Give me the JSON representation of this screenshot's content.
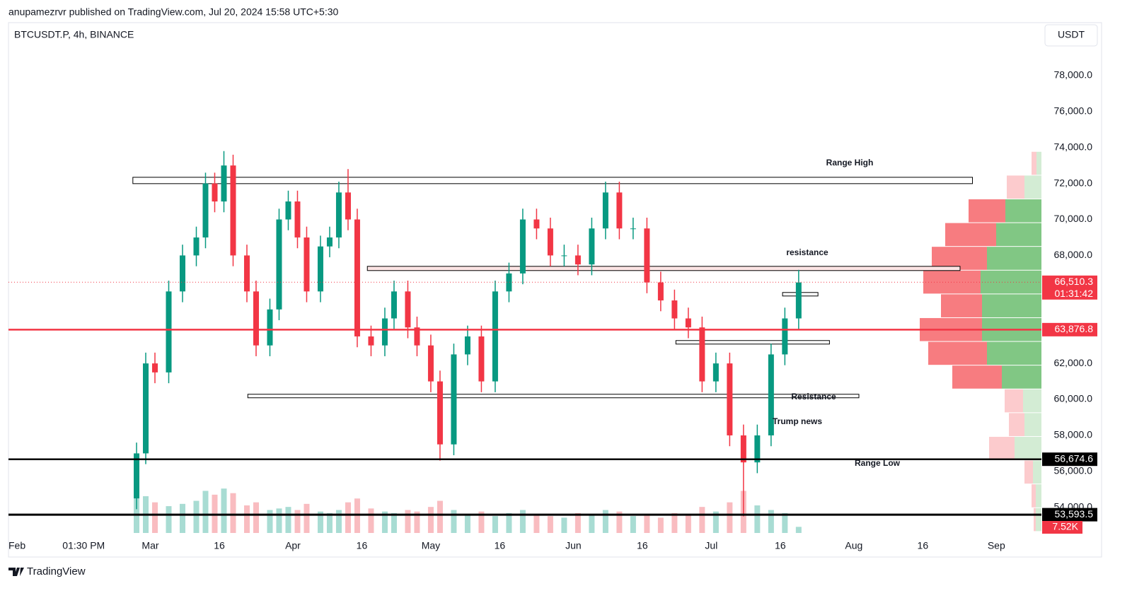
{
  "header": {
    "publisher": "anupamezrvr published on TradingView.com, Jul 20, 2024 15:58 UTC+5:30",
    "symbol": "BTCUSDT.P, 4h, BINANCE",
    "currency": "USDT",
    "brand": "TradingView"
  },
  "chart_data": {
    "type": "candlestick",
    "x": [
      26,
      28,
      30,
      33,
      36,
      39,
      41,
      43,
      45,
      47,
      50,
      52,
      55,
      57,
      59,
      61,
      63,
      66,
      68,
      70,
      72,
      74,
      77,
      80,
      82,
      85,
      87,
      90,
      92,
      95,
      98,
      101,
      104,
      107,
      110,
      113,
      116,
      119,
      122,
      125,
      128,
      131,
      134,
      137,
      140,
      143,
      146,
      149,
      152,
      155,
      158,
      161,
      164,
      167,
      170
    ],
    "open": [
      54500,
      57000,
      62000,
      61500,
      66000,
      68000,
      69000,
      72000,
      71000,
      73000,
      68000,
      66000,
      63000,
      65000,
      70000,
      71000,
      69000,
      66000,
      68500,
      69000,
      71500,
      70000,
      63500,
      63000,
      64500,
      66000,
      64000,
      63000,
      61000,
      57500,
      62500,
      63500,
      61000,
      66000,
      67000,
      70000,
      69500,
      68000,
      68000,
      67500,
      69500,
      71500,
      69500,
      69500,
      66500,
      65500,
      64500,
      64000,
      61000,
      62000,
      58000,
      56500,
      58000,
      62500,
      64500
    ],
    "high": [
      57600,
      62600,
      62600,
      66600,
      68600,
      69600,
      72600,
      72600,
      73800,
      73600,
      68600,
      66600,
      65600,
      70600,
      71600,
      71600,
      69600,
      69100,
      69600,
      72100,
      72800,
      70600,
      64100,
      65100,
      66600,
      66600,
      64600,
      63600,
      61600,
      63100,
      64100,
      64100,
      66600,
      67600,
      70600,
      70600,
      70100,
      68600,
      68600,
      70100,
      72100,
      72100,
      70100,
      70100,
      67100,
      66100,
      65100,
      64600,
      62600,
      62600,
      58600,
      58600,
      63100,
      65100,
      67200
    ],
    "low": [
      53900,
      56400,
      60900,
      60900,
      65400,
      67400,
      68400,
      70400,
      70400,
      67400,
      65400,
      62400,
      62400,
      64400,
      69400,
      68400,
      65400,
      65400,
      67900,
      68400,
      69400,
      62900,
      62400,
      62400,
      63900,
      63400,
      62400,
      60400,
      56600,
      56900,
      61900,
      60400,
      60400,
      65400,
      66400,
      68900,
      67400,
      67400,
      66900,
      66900,
      68900,
      68900,
      68900,
      65900,
      64900,
      63900,
      63400,
      60400,
      60400,
      57400,
      53500,
      55900,
      57400,
      61900,
      63900
    ],
    "close": [
      57000,
      62000,
      61500,
      66000,
      68000,
      69000,
      72000,
      71000,
      73000,
      68000,
      66000,
      63000,
      65000,
      70000,
      71000,
      69000,
      66000,
      68500,
      69000,
      71500,
      70000,
      63500,
      63000,
      64500,
      66000,
      64000,
      63000,
      61000,
      57500,
      62500,
      63500,
      61000,
      66000,
      67000,
      70000,
      69500,
      68000,
      68000,
      67500,
      69500,
      71500,
      69500,
      69500,
      66500,
      65500,
      64500,
      64000,
      61000,
      62000,
      58000,
      56500,
      58000,
      62500,
      64500,
      66500
    ],
    "volume": [
      60,
      48,
      40,
      35,
      38,
      42,
      55,
      50,
      58,
      52,
      36,
      40,
      30,
      32,
      34,
      30,
      38,
      28,
      26,
      30,
      40,
      45,
      32,
      28,
      26,
      30,
      28,
      34,
      42,
      30,
      24,
      28,
      22,
      26,
      30,
      24,
      22,
      20,
      26,
      24,
      30,
      28,
      22,
      24,
      20,
      26,
      24,
      34,
      28,
      40,
      55,
      36,
      30,
      26,
      8
    ],
    "volume_label": "7.52K",
    "up_color": "#089981",
    "down_color": "#f23645",
    "xlim": [
      -1.85,
      222.8
    ],
    "xticks": [
      {
        "value": 0,
        "label": "Feb"
      },
      {
        "value": 14.5,
        "label": "01:30 PM"
      },
      {
        "value": 29,
        "label": "Mar"
      },
      {
        "value": 44,
        "label": "16"
      },
      {
        "value": 60,
        "label": "Apr"
      },
      {
        "value": 75,
        "label": "16"
      },
      {
        "value": 90,
        "label": "May"
      },
      {
        "value": 105,
        "label": "16"
      },
      {
        "value": 121,
        "label": "Jun"
      },
      {
        "value": 136,
        "label": "16"
      },
      {
        "value": 151,
        "label": "Jul"
      },
      {
        "value": 166,
        "label": "16"
      },
      {
        "value": 182,
        "label": "Aug"
      },
      {
        "value": 197,
        "label": "16"
      },
      {
        "value": 213,
        "label": "Sep"
      }
    ],
    "ylim": [
      51320,
      80900
    ],
    "yticks": [
      {
        "value": 54000,
        "label": "54,000.0"
      },
      {
        "value": 56000,
        "label": "56,000.0"
      },
      {
        "value": 58000,
        "label": "58,000.0"
      },
      {
        "value": 60000,
        "label": "60,000.0"
      },
      {
        "value": 62000,
        "label": "62,000.0"
      },
      {
        "value": 64000,
        "label": "64,000.0"
      },
      {
        "value": 66000,
        "label": "66,000.0"
      },
      {
        "value": 68000,
        "label": "68,000.0"
      },
      {
        "value": 70000,
        "label": "70,000.0"
      },
      {
        "value": 72000,
        "label": "72,000.0"
      },
      {
        "value": 74000,
        "label": "74,000.0"
      },
      {
        "value": 76000,
        "label": "76,000.0"
      },
      {
        "value": 78000,
        "label": "78,000.0"
      }
    ],
    "grid": false,
    "price_lines": [
      {
        "value": 66510.3,
        "label": "66,510.3",
        "timer": "01:31:42",
        "color": "#f23645",
        "style": "dotted"
      },
      {
        "value": 63876.8,
        "label": "63,876.8",
        "color": "#f23645",
        "style": "solid"
      },
      {
        "value": 56674.6,
        "label": "56,674.6",
        "color": "#000000",
        "style": "solid"
      },
      {
        "value": 53593.5,
        "label": "53,593.5",
        "color": "#000000",
        "style": "solid"
      }
    ],
    "boxes": [
      {
        "x": [
          25.2,
          207.8
        ],
        "y": [
          71990,
          72344
        ],
        "fill": "#ffffff"
      },
      {
        "x": [
          76.2,
          205.1
        ],
        "y": [
          67160,
          67395
        ],
        "fill": "#fce4e4"
      },
      {
        "x": [
          166.5,
          174.2
        ],
        "y": [
          65746,
          65942
        ],
        "fill": "#ffffff"
      },
      {
        "x": [
          143.3,
          176.7
        ],
        "y": [
          63075,
          63271
        ],
        "fill": "#ffffff"
      },
      {
        "x": [
          50.2,
          183.1
        ],
        "y": [
          60090,
          60286
        ],
        "fill": "#ffffff"
      }
    ],
    "annotations": [
      "Range High",
      "resistance",
      "Resistance",
      "Trump news",
      "Range Low"
    ],
    "volume_profile": {
      "bins": [
        73800,
        72480,
        71160,
        69840,
        68520,
        67200,
        65880,
        64560,
        63240,
        61920,
        60600,
        59280,
        57960,
        56640,
        55320,
        54000,
        52680
      ],
      "sell": [
        7,
        25,
        52,
        72,
        78,
        81,
        58,
        88,
        83,
        70,
        26,
        22,
        36,
        12,
        6,
        3
      ],
      "buy": [
        7,
        24,
        51,
        64,
        77,
        86,
        84,
        84,
        77,
        56,
        26,
        24,
        38,
        12,
        8,
        8
      ],
      "value_area": [
        2,
        9
      ]
    }
  }
}
